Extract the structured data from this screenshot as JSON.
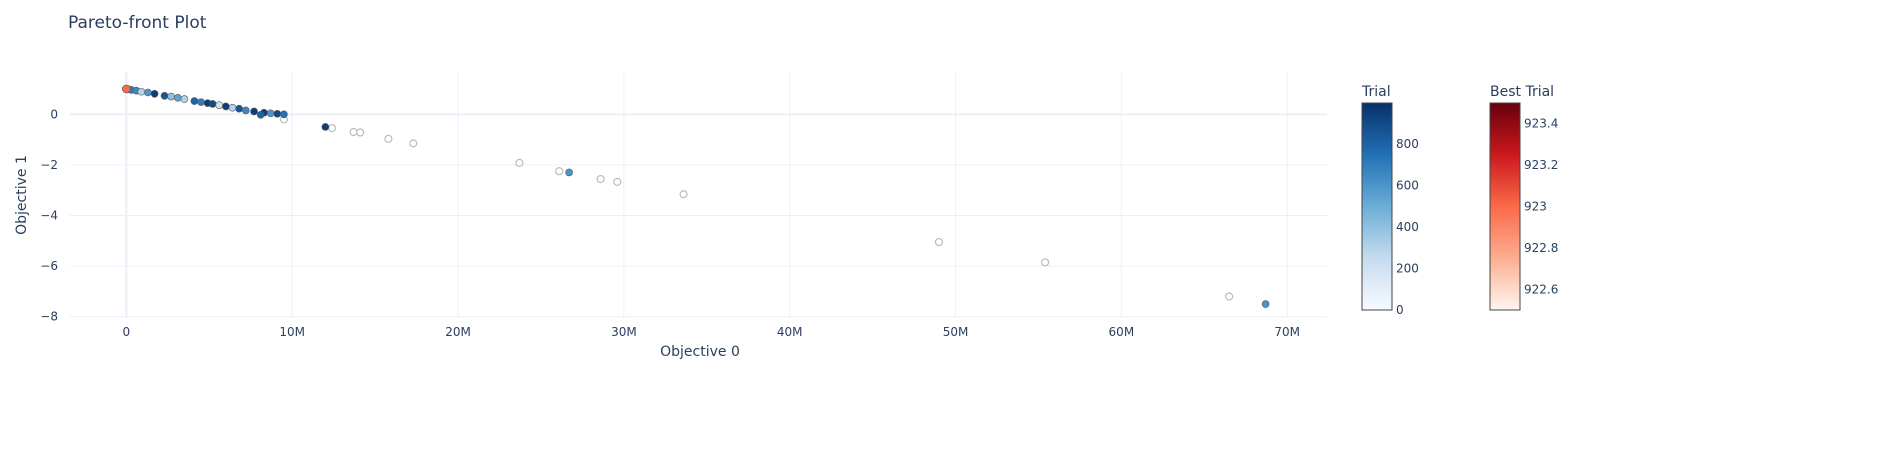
{
  "chart_data": {
    "type": "scatter",
    "title": "Pareto-front Plot",
    "xlabel": "Objective 0",
    "ylabel": "Objective 1",
    "xlim": [
      -3400000,
      72400000
    ],
    "ylim": [
      -8.05,
      1.67
    ],
    "grid": true,
    "x_ticks": [
      0,
      10000000,
      20000000,
      30000000,
      40000000,
      50000000,
      60000000,
      70000000
    ],
    "x_tick_labels": [
      "0",
      "10M",
      "20M",
      "30M",
      "40M",
      "50M",
      "60M",
      "70M"
    ],
    "y_ticks": [
      0,
      -2,
      -4,
      -6,
      -8
    ],
    "y_tick_labels": [
      "0",
      "−2",
      "−4",
      "−6",
      "−8"
    ],
    "trial_points": [
      {
        "x": 100000,
        "y": 0.99,
        "trial": 900
      },
      {
        "x": 300000,
        "y": 0.96,
        "trial": 700
      },
      {
        "x": 600000,
        "y": 0.93,
        "trial": 650
      },
      {
        "x": 900000,
        "y": 0.89,
        "trial": 300
      },
      {
        "x": 1300000,
        "y": 0.86,
        "trial": 600
      },
      {
        "x": 1700000,
        "y": 0.81,
        "trial": 950
      },
      {
        "x": 2300000,
        "y": 0.73,
        "trial": 850
      },
      {
        "x": 2700000,
        "y": 0.7,
        "trial": 400
      },
      {
        "x": 3100000,
        "y": 0.65,
        "trial": 550
      },
      {
        "x": 3500000,
        "y": 0.6,
        "trial": 300
      },
      {
        "x": 4100000,
        "y": 0.52,
        "trial": 800
      },
      {
        "x": 4500000,
        "y": 0.48,
        "trial": 700
      },
      {
        "x": 4900000,
        "y": 0.44,
        "trial": 950
      },
      {
        "x": 5200000,
        "y": 0.41,
        "trial": 900
      },
      {
        "x": 5600000,
        "y": 0.36,
        "trial": 200
      },
      {
        "x": 6000000,
        "y": 0.31,
        "trial": 950
      },
      {
        "x": 6400000,
        "y": 0.26,
        "trial": 300
      },
      {
        "x": 6800000,
        "y": 0.22,
        "trial": 850
      },
      {
        "x": 7200000,
        "y": 0.15,
        "trial": 650
      },
      {
        "x": 7700000,
        "y": 0.11,
        "trial": 950
      },
      {
        "x": 8300000,
        "y": 0.06,
        "trial": 950
      },
      {
        "x": 8700000,
        "y": 0.04,
        "trial": 600
      },
      {
        "x": 9100000,
        "y": 0.02,
        "trial": 900
      },
      {
        "x": 9500000,
        "y": 0.0,
        "trial": 750
      },
      {
        "x": 8100000,
        "y": -0.02,
        "trial": 800
      },
      {
        "x": 12000000,
        "y": -0.5,
        "trial": 950
      },
      {
        "x": 26700000,
        "y": -2.3,
        "trial": 600
      },
      {
        "x": 68700000,
        "y": -7.5,
        "trial": 600
      }
    ],
    "other_points": [
      {
        "x": 9500000,
        "y": -0.2
      },
      {
        "x": 12400000,
        "y": -0.55
      },
      {
        "x": 13700000,
        "y": -0.7
      },
      {
        "x": 14100000,
        "y": -0.72
      },
      {
        "x": 15800000,
        "y": -0.97
      },
      {
        "x": 17300000,
        "y": -1.15
      },
      {
        "x": 23700000,
        "y": -1.92
      },
      {
        "x": 26100000,
        "y": -2.25
      },
      {
        "x": 28600000,
        "y": -2.56
      },
      {
        "x": 29600000,
        "y": -2.67
      },
      {
        "x": 33600000,
        "y": -3.16
      },
      {
        "x": 49000000,
        "y": -5.05
      },
      {
        "x": 55400000,
        "y": -5.85
      },
      {
        "x": 66500000,
        "y": -7.2
      }
    ],
    "best_points": [
      {
        "x": 0,
        "y": 1.0,
        "best_trial": 923
      }
    ],
    "colorbars": [
      {
        "title": "Trial",
        "range": [
          0,
          999
        ],
        "ticks": [
          0,
          200,
          400,
          600,
          800
        ],
        "tick_labels": [
          "0",
          "200",
          "400",
          "600",
          "800"
        ],
        "colorscale": "Blues"
      },
      {
        "title": "Best Trial",
        "range": [
          922.5,
          923.5
        ],
        "ticks": [
          922.6,
          922.8,
          923,
          923.2,
          923.4
        ],
        "tick_labels": [
          "922.6",
          "922.8",
          "923",
          "923.2",
          "923.4"
        ],
        "colorscale": "Reds"
      }
    ]
  },
  "colors": {
    "grid": "#ebf0f8",
    "text": "#2a3f5f",
    "other_marker": "#bbbbbb"
  }
}
